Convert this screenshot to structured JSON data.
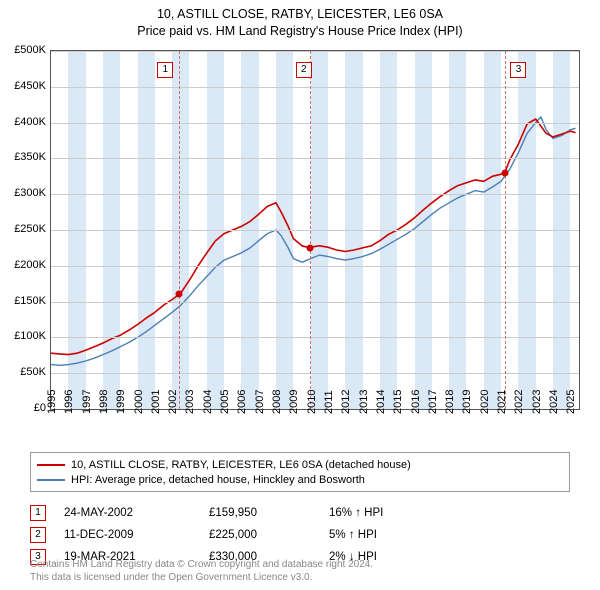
{
  "title_line1": "10, ASTILL CLOSE, RATBY, LEICESTER, LE6 0SA",
  "title_line2": "Price paid vs. HM Land Registry's House Price Index (HPI)",
  "title_fontsize": 12.5,
  "chart": {
    "type": "line",
    "x_min": 1995,
    "x_max": 2025.5,
    "y_min": 0,
    "y_max": 500000,
    "y_ticks": [
      0,
      50000,
      100000,
      150000,
      200000,
      250000,
      300000,
      350000,
      400000,
      450000,
      500000
    ],
    "y_tick_labels": [
      "£0",
      "£50K",
      "£100K",
      "£150K",
      "£200K",
      "£250K",
      "£300K",
      "£350K",
      "£400K",
      "£450K",
      "£500K"
    ],
    "x_ticks": [
      1995,
      1996,
      1997,
      1998,
      1999,
      2000,
      2001,
      2002,
      2003,
      2004,
      2005,
      2006,
      2007,
      2008,
      2009,
      2010,
      2011,
      2012,
      2013,
      2014,
      2015,
      2016,
      2017,
      2018,
      2019,
      2020,
      2021,
      2022,
      2023,
      2024,
      2025
    ],
    "band_color": "#dbe9f6",
    "grid_color": "#cccccc",
    "border_color": "#555555",
    "background_color": "#ffffff",
    "series": [
      {
        "name": "property",
        "color": "#cc0000",
        "width": 1.6,
        "label": "10, ASTILL CLOSE, RATBY, LEICESTER, LE6 0SA (detached house)",
        "points": [
          [
            1995.0,
            78000
          ],
          [
            1995.5,
            77000
          ],
          [
            1996.0,
            76000
          ],
          [
            1996.5,
            78000
          ],
          [
            1997.0,
            82000
          ],
          [
            1997.5,
            87000
          ],
          [
            1998.0,
            92000
          ],
          [
            1998.5,
            98000
          ],
          [
            1999.0,
            103000
          ],
          [
            1999.5,
            110000
          ],
          [
            2000.0,
            118000
          ],
          [
            2000.5,
            127000
          ],
          [
            2001.0,
            135000
          ],
          [
            2001.5,
            145000
          ],
          [
            2002.0,
            153000
          ],
          [
            2002.4,
            159950
          ],
          [
            2002.5,
            162000
          ],
          [
            2003.0,
            180000
          ],
          [
            2003.5,
            200000
          ],
          [
            2004.0,
            218000
          ],
          [
            2004.5,
            235000
          ],
          [
            2005.0,
            245000
          ],
          [
            2005.5,
            250000
          ],
          [
            2006.0,
            255000
          ],
          [
            2006.5,
            262000
          ],
          [
            2007.0,
            272000
          ],
          [
            2007.5,
            283000
          ],
          [
            2008.0,
            288000
          ],
          [
            2008.3,
            275000
          ],
          [
            2008.7,
            255000
          ],
          [
            2009.0,
            238000
          ],
          [
            2009.5,
            228000
          ],
          [
            2009.95,
            225000
          ],
          [
            2010.0,
            226000
          ],
          [
            2010.5,
            228000
          ],
          [
            2011.0,
            226000
          ],
          [
            2011.5,
            222000
          ],
          [
            2012.0,
            220000
          ],
          [
            2012.5,
            222000
          ],
          [
            2013.0,
            225000
          ],
          [
            2013.5,
            228000
          ],
          [
            2014.0,
            235000
          ],
          [
            2014.5,
            244000
          ],
          [
            2015.0,
            250000
          ],
          [
            2015.5,
            258000
          ],
          [
            2016.0,
            267000
          ],
          [
            2016.5,
            278000
          ],
          [
            2017.0,
            288000
          ],
          [
            2017.5,
            297000
          ],
          [
            2018.0,
            305000
          ],
          [
            2018.5,
            312000
          ],
          [
            2019.0,
            316000
          ],
          [
            2019.5,
            320000
          ],
          [
            2020.0,
            318000
          ],
          [
            2020.5,
            325000
          ],
          [
            2021.0,
            328000
          ],
          [
            2021.21,
            330000
          ],
          [
            2021.5,
            348000
          ],
          [
            2022.0,
            370000
          ],
          [
            2022.5,
            398000
          ],
          [
            2023.0,
            405000
          ],
          [
            2023.3,
            395000
          ],
          [
            2023.6,
            385000
          ],
          [
            2024.0,
            380000
          ],
          [
            2024.5,
            384000
          ],
          [
            2025.0,
            388000
          ],
          [
            2025.3,
            386000
          ]
        ]
      },
      {
        "name": "hpi",
        "color": "#4a7fb5",
        "width": 1.4,
        "label": "HPI: Average price, detached house, Hinckley and Bosworth",
        "points": [
          [
            1995.0,
            62000
          ],
          [
            1995.5,
            61000
          ],
          [
            1996.0,
            62000
          ],
          [
            1996.5,
            64000
          ],
          [
            1997.0,
            67000
          ],
          [
            1997.5,
            71000
          ],
          [
            1998.0,
            76000
          ],
          [
            1998.5,
            81000
          ],
          [
            1999.0,
            87000
          ],
          [
            1999.5,
            93000
          ],
          [
            2000.0,
            100000
          ],
          [
            2000.5,
            108000
          ],
          [
            2001.0,
            117000
          ],
          [
            2001.5,
            126000
          ],
          [
            2002.0,
            135000
          ],
          [
            2002.5,
            145000
          ],
          [
            2003.0,
            158000
          ],
          [
            2003.5,
            172000
          ],
          [
            2004.0,
            185000
          ],
          [
            2004.5,
            198000
          ],
          [
            2005.0,
            208000
          ],
          [
            2005.5,
            213000
          ],
          [
            2006.0,
            218000
          ],
          [
            2006.5,
            225000
          ],
          [
            2007.0,
            235000
          ],
          [
            2007.5,
            245000
          ],
          [
            2008.0,
            250000
          ],
          [
            2008.3,
            242000
          ],
          [
            2008.7,
            225000
          ],
          [
            2009.0,
            210000
          ],
          [
            2009.5,
            205000
          ],
          [
            2010.0,
            210000
          ],
          [
            2010.5,
            215000
          ],
          [
            2011.0,
            213000
          ],
          [
            2011.5,
            210000
          ],
          [
            2012.0,
            208000
          ],
          [
            2012.5,
            210000
          ],
          [
            2013.0,
            213000
          ],
          [
            2013.5,
            217000
          ],
          [
            2014.0,
            223000
          ],
          [
            2014.5,
            230000
          ],
          [
            2015.0,
            237000
          ],
          [
            2015.5,
            244000
          ],
          [
            2016.0,
            252000
          ],
          [
            2016.5,
            262000
          ],
          [
            2017.0,
            272000
          ],
          [
            2017.5,
            281000
          ],
          [
            2018.0,
            288000
          ],
          [
            2018.5,
            295000
          ],
          [
            2019.0,
            300000
          ],
          [
            2019.5,
            305000
          ],
          [
            2020.0,
            303000
          ],
          [
            2020.5,
            310000
          ],
          [
            2021.0,
            318000
          ],
          [
            2021.5,
            335000
          ],
          [
            2022.0,
            358000
          ],
          [
            2022.5,
            385000
          ],
          [
            2023.0,
            400000
          ],
          [
            2023.3,
            408000
          ],
          [
            2023.6,
            390000
          ],
          [
            2024.0,
            378000
          ],
          [
            2024.5,
            382000
          ],
          [
            2025.0,
            390000
          ],
          [
            2025.3,
            392000
          ]
        ]
      }
    ],
    "sale_markers": [
      {
        "n": "1",
        "x": 2002.4,
        "y": 159950,
        "box_x": 2001.2,
        "box_y_top": 60,
        "dashed_color": "#cc7070",
        "dot_color": "#cc0000"
      },
      {
        "n": "2",
        "x": 2009.95,
        "y": 225000,
        "box_x": 2009.2,
        "box_y_top": 60,
        "dashed_color": "#cc7070",
        "dot_color": "#cc0000"
      },
      {
        "n": "3",
        "x": 2021.21,
        "y": 330000,
        "box_x": 2021.6,
        "box_y_top": 60,
        "dashed_color": "#cc7070",
        "dot_color": "#cc0000"
      }
    ]
  },
  "legend": {
    "border_color": "#999999"
  },
  "sales_table": {
    "rows": [
      {
        "n": "1",
        "date": "24-MAY-2002",
        "price": "£159,950",
        "hpi": "16% ↑ HPI"
      },
      {
        "n": "2",
        "date": "11-DEC-2009",
        "price": "£225,000",
        "hpi": "5% ↑ HPI"
      },
      {
        "n": "3",
        "date": "19-MAR-2021",
        "price": "£330,000",
        "hpi": "2% ↓ HPI"
      }
    ]
  },
  "footnote_line1": "Contains HM Land Registry data © Crown copyright and database right 2024.",
  "footnote_line2": "This data is licensed under the Open Government Licence v3.0."
}
